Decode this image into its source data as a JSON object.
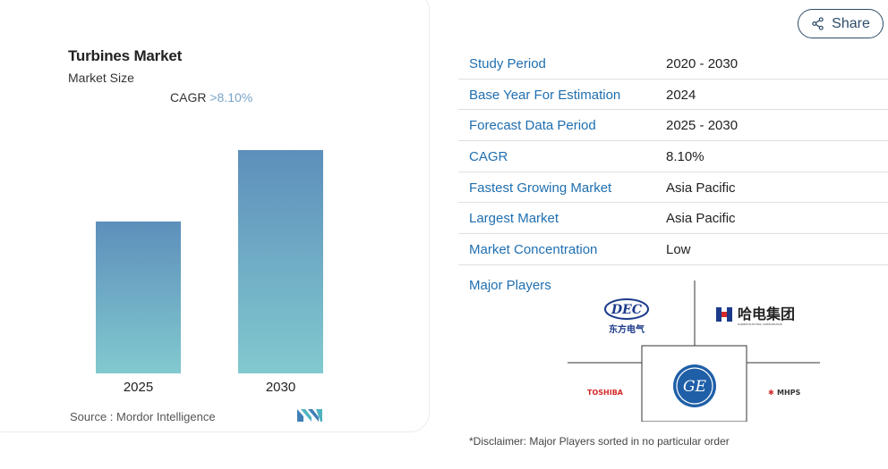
{
  "chart_data": {
    "type": "bar",
    "title": "Turbines Market",
    "subtitle": "Market Size",
    "cagr_label": "CAGR",
    "cagr_value": ">8.10%",
    "categories": [
      "2025",
      "2030"
    ],
    "values": [
      1,
      1.47
    ],
    "colors": {
      "bar_top": "#5d8fbb",
      "bar_bottom": "#82c9cf"
    }
  },
  "source": {
    "text": "Source :  Mordor Intelligence",
    "logo": "mordor-intelligence-logo"
  },
  "share": {
    "label": "Share",
    "icon": "share-icon"
  },
  "info": [
    {
      "key": "Study Period",
      "value": "2020 - 2030"
    },
    {
      "key": "Base Year For Estimation",
      "value": "2024"
    },
    {
      "key": "Forecast Data Period",
      "value": "2025 - 2030"
    },
    {
      "key": "CAGR",
      "value": "8.10%"
    },
    {
      "key": "Fastest Growing Market",
      "value": "Asia Pacific"
    },
    {
      "key": "Largest Market",
      "value": "Asia Pacific"
    },
    {
      "key": "Market Concentration",
      "value": "Low"
    }
  ],
  "major_players": {
    "label": "Major Players",
    "logos": [
      {
        "name": "DEC",
        "subtitle": "东方电气"
      },
      {
        "name": "哈电集团",
        "subtitle": "HARBIN ELECTRIC CORPORATION"
      },
      {
        "name": "TOSHIBA"
      },
      {
        "name": "GE"
      },
      {
        "name": "MHPS"
      }
    ]
  },
  "disclaimer": "*Disclaimer: Major Players sorted in no particular order",
  "colors": {
    "accent": "#1f6fb0",
    "share_border": "#2d4d6a"
  }
}
